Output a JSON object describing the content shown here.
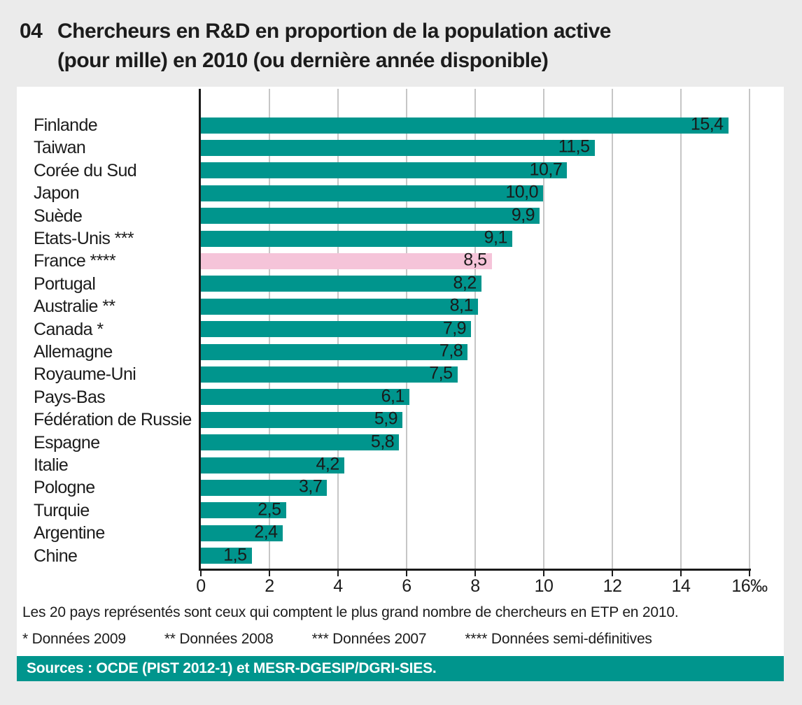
{
  "page": {
    "background": "#ebebeb",
    "panel_background": "#ffffff"
  },
  "figure": {
    "number": "04",
    "title_line1": "Chercheurs en R&D en proportion de la population active",
    "title_line2": "(pour mille) en 2010 (ou dernière année disponible)"
  },
  "chart_data": {
    "type": "bar",
    "orientation": "horizontal",
    "unit": "pour mille (‰)",
    "xlim": [
      0,
      16
    ],
    "grid": "vertical-on",
    "legend": "none",
    "bar_color": "#00958d",
    "highlight_color": "#f5c4d9",
    "gridline_color": "#c6c6c6",
    "axis_color": "#1a1a1a",
    "x_ticks": [
      {
        "label": "0",
        "value": 0
      },
      {
        "label": "2",
        "value": 2
      },
      {
        "label": "4",
        "value": 4
      },
      {
        "label": "6",
        "value": 6
      },
      {
        "label": "8",
        "value": 8
      },
      {
        "label": "10",
        "value": 10
      },
      {
        "label": "12",
        "value": 12
      },
      {
        "label": "14",
        "value": 14
      },
      {
        "label": "16‰",
        "value": 16
      }
    ],
    "rows": [
      {
        "label": "Finlande",
        "value": 15.4,
        "display": "15,4",
        "highlight": false
      },
      {
        "label": "Taiwan",
        "value": 11.5,
        "display": "11,5",
        "highlight": false
      },
      {
        "label": "Corée du Sud",
        "value": 10.7,
        "display": "10,7",
        "highlight": false
      },
      {
        "label": "Japon",
        "value": 10.0,
        "display": "10,0",
        "highlight": false
      },
      {
        "label": "Suède",
        "value": 9.9,
        "display": "9,9",
        "highlight": false
      },
      {
        "label": "Etats-Unis ***",
        "value": 9.1,
        "display": "9,1",
        "highlight": false
      },
      {
        "label": "France ****",
        "value": 8.5,
        "display": "8,5",
        "highlight": true
      },
      {
        "label": "Portugal",
        "value": 8.2,
        "display": "8,2",
        "highlight": false
      },
      {
        "label": "Australie **",
        "value": 8.1,
        "display": "8,1",
        "highlight": false
      },
      {
        "label": "Canada *",
        "value": 7.9,
        "display": "7,9",
        "highlight": false
      },
      {
        "label": "Allemagne",
        "value": 7.8,
        "display": "7,8",
        "highlight": false
      },
      {
        "label": "Royaume-Uni",
        "value": 7.5,
        "display": "7,5",
        "highlight": false
      },
      {
        "label": "Pays-Bas",
        "value": 6.1,
        "display": "6,1",
        "highlight": false
      },
      {
        "label": "Fédération de Russie",
        "value": 5.9,
        "display": "5,9",
        "highlight": false
      },
      {
        "label": "Espagne",
        "value": 5.8,
        "display": "5,8",
        "highlight": false
      },
      {
        "label": "Italie",
        "value": 4.2,
        "display": "4,2",
        "highlight": false
      },
      {
        "label": "Pologne",
        "value": 3.7,
        "display": "3,7",
        "highlight": false
      },
      {
        "label": "Turquie",
        "value": 2.5,
        "display": "2,5",
        "highlight": false
      },
      {
        "label": "Argentine",
        "value": 2.4,
        "display": "2,4",
        "highlight": false
      },
      {
        "label": "Chine",
        "value": 1.5,
        "display": "1,5",
        "highlight": false
      }
    ]
  },
  "notes": {
    "line1": "Les 20 pays représentés sont ceux qui comptent le plus grand nombre de chercheurs en ETP en 2010.",
    "items": [
      "* Données 2009",
      "** Données 2008",
      "*** Données 2007",
      "**** Données semi-définitives"
    ]
  },
  "sources": {
    "label": "Sources : OCDE (PIST 2012-1) et MESR-DGESIP/DGRI-SIES."
  }
}
